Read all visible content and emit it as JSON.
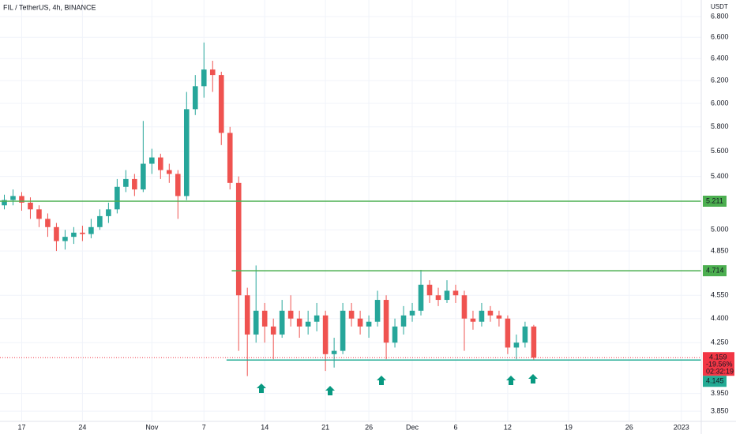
{
  "chart_data": {
    "type": "candlestick",
    "title": "FIL / TetherUS, 4h, BINANCE",
    "y_axis_label": "USDT",
    "log_scale": true,
    "grid": true,
    "up_color": "#26a69a",
    "down_color": "#ef5350",
    "xlim": [
      -2.5,
      78.3
    ],
    "xticks": [
      {
        "value": 0,
        "label": "17"
      },
      {
        "value": 7,
        "label": "24"
      },
      {
        "value": 15,
        "label": "Nov"
      },
      {
        "value": 21,
        "label": "7"
      },
      {
        "value": 28,
        "label": "14"
      },
      {
        "value": 35,
        "label": "21"
      },
      {
        "value": 40,
        "label": "26"
      },
      {
        "value": 45,
        "label": "Dec"
      },
      {
        "value": 50,
        "label": "6"
      },
      {
        "value": 56,
        "label": "12"
      },
      {
        "value": 63,
        "label": "19"
      },
      {
        "value": 70,
        "label": "26"
      },
      {
        "value": 76,
        "label": "2023"
      }
    ],
    "ylim": [
      3.794,
      6.964
    ],
    "yticks": [
      {
        "value": 6.8,
        "label": "6.800"
      },
      {
        "value": 6.6,
        "label": "6.600"
      },
      {
        "value": 6.4,
        "label": "6.400"
      },
      {
        "value": 6.2,
        "label": "6.200"
      },
      {
        "value": 6.0,
        "label": "6.000"
      },
      {
        "value": 5.8,
        "label": "5.800"
      },
      {
        "value": 5.6,
        "label": "5.600"
      },
      {
        "value": 5.4,
        "label": "5.400"
      },
      {
        "value": 5.0,
        "label": "5.000"
      },
      {
        "value": 4.85,
        "label": "4.850"
      },
      {
        "value": 4.55,
        "label": "4.550"
      },
      {
        "value": 4.4,
        "label": "4.400"
      },
      {
        "value": 4.25,
        "label": "4.250"
      },
      {
        "value": 3.95,
        "label": "3.950"
      },
      {
        "value": 3.85,
        "label": "3.850"
      }
    ],
    "candles": {
      "x": [
        -2,
        -1,
        0,
        1,
        2,
        3,
        4,
        5,
        6,
        7,
        8,
        9,
        10,
        11,
        12,
        13,
        14,
        15,
        16,
        17,
        18,
        19,
        20,
        21,
        22,
        23,
        24,
        25,
        26,
        27,
        28,
        29,
        30,
        31,
        32,
        33,
        34,
        35,
        36,
        37,
        38,
        39,
        40,
        41,
        42,
        43,
        44,
        45,
        46,
        47,
        48,
        49,
        50,
        51,
        52,
        53,
        54,
        55,
        56,
        57,
        58,
        59
      ],
      "open": [
        5.18,
        5.22,
        5.25,
        5.2,
        5.15,
        5.08,
        5.02,
        4.92,
        4.95,
        4.98,
        4.97,
        5.02,
        5.1,
        5.15,
        5.32,
        5.38,
        5.3,
        5.5,
        5.55,
        5.45,
        5.42,
        5.25,
        5.95,
        6.15,
        6.3,
        6.25,
        5.75,
        5.35,
        4.55,
        4.3,
        4.45,
        4.35,
        4.3,
        4.45,
        4.4,
        4.35,
        4.38,
        4.42,
        4.18,
        4.2,
        4.45,
        4.4,
        4.35,
        4.38,
        4.52,
        4.25,
        4.35,
        4.42,
        4.45,
        4.62,
        4.55,
        4.52,
        4.58,
        4.55,
        4.4,
        4.38,
        4.45,
        4.42,
        4.4,
        4.22,
        4.25,
        4.35
      ],
      "high": [
        5.26,
        5.3,
        5.28,
        5.24,
        5.18,
        5.12,
        5.05,
        5.0,
        5.02,
        5.03,
        5.08,
        5.15,
        5.2,
        5.38,
        5.45,
        5.42,
        5.85,
        5.62,
        5.58,
        5.5,
        5.45,
        6.1,
        6.25,
        6.55,
        6.38,
        6.28,
        5.8,
        5.4,
        4.6,
        4.75,
        4.5,
        4.4,
        4.52,
        4.55,
        4.45,
        4.45,
        4.5,
        4.45,
        4.28,
        4.5,
        4.5,
        4.45,
        4.42,
        4.58,
        4.55,
        4.4,
        4.48,
        4.5,
        4.72,
        4.65,
        4.6,
        4.65,
        4.62,
        4.58,
        4.45,
        4.5,
        4.48,
        4.45,
        4.42,
        4.3,
        4.38,
        4.36
      ],
      "low": [
        5.15,
        5.18,
        5.14,
        5.08,
        5.02,
        4.95,
        4.85,
        4.86,
        4.9,
        4.92,
        4.94,
        5.0,
        5.05,
        5.12,
        5.28,
        5.25,
        5.28,
        5.42,
        5.38,
        5.35,
        5.08,
        5.22,
        5.9,
        6.05,
        6.1,
        5.65,
        5.3,
        4.2,
        4.05,
        4.25,
        4.25,
        4.15,
        4.28,
        4.35,
        4.28,
        4.3,
        4.32,
        4.08,
        4.1,
        4.18,
        4.35,
        4.3,
        4.28,
        4.35,
        4.15,
        4.22,
        4.3,
        4.38,
        4.42,
        4.5,
        4.48,
        4.5,
        4.5,
        4.2,
        4.33,
        4.35,
        4.38,
        4.35,
        4.18,
        4.15,
        4.22,
        4.145
      ],
      "close": [
        5.22,
        5.25,
        5.2,
        5.15,
        5.08,
        5.02,
        4.92,
        4.95,
        4.98,
        4.97,
        5.02,
        5.1,
        5.15,
        5.32,
        5.38,
        5.3,
        5.5,
        5.55,
        5.45,
        5.42,
        5.25,
        5.95,
        6.15,
        6.3,
        6.25,
        5.75,
        5.35,
        4.55,
        4.3,
        4.45,
        4.35,
        4.3,
        4.45,
        4.4,
        4.35,
        4.38,
        4.42,
        4.18,
        4.2,
        4.45,
        4.4,
        4.35,
        4.38,
        4.52,
        4.25,
        4.35,
        4.42,
        4.45,
        4.62,
        4.55,
        4.52,
        4.58,
        4.55,
        4.4,
        4.38,
        4.45,
        4.42,
        4.4,
        4.22,
        4.25,
        4.35,
        4.159
      ]
    },
    "levels": [
      {
        "value": 5.211,
        "color": "#4caf50"
      },
      {
        "value": 4.714,
        "x_start": 24.2,
        "color": "#4caf50"
      },
      {
        "value": 4.145,
        "x_start": 23.6,
        "color": "#22ab94"
      }
    ],
    "last_price": {
      "value": 4.159,
      "change": "-19.56%",
      "countdown": "02:32:19",
      "color": "#f23645"
    }
  }
}
